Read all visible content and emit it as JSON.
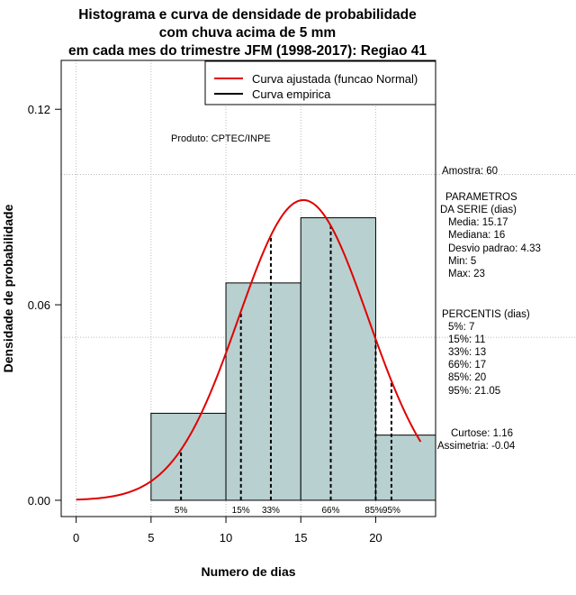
{
  "chart_data": {
    "type": "histogram",
    "title_lines": [
      "Histograma e curva de densidade de probabilidade",
      "com chuva acima de 5 mm",
      "em cada mes do trimestre JFM (1998-2017): Regiao 41"
    ],
    "xlabel": "Numero de dias",
    "ylabel": "Densidade de probabilidade",
    "xlim": [
      -1,
      24
    ],
    "ylim": [
      -0.005,
      0.135
    ],
    "x_ticks": [
      0,
      5,
      10,
      15,
      20
    ],
    "y_ticks": [
      0.0,
      0.06,
      0.12
    ],
    "y_tick_labels": [
      "0.00",
      "0.06",
      "0.12"
    ],
    "bins": [
      {
        "x0": 5,
        "x1": 10,
        "density": 0.0267
      },
      {
        "x0": 10,
        "x1": 15,
        "density": 0.0667
      },
      {
        "x0": 15,
        "x1": 20,
        "density": 0.0867
      },
      {
        "x0": 20,
        "x1": 24,
        "density": 0.02
      }
    ],
    "normal_fit": {
      "mean": 15.17,
      "sd": 4.33,
      "x_from": 0,
      "x_to": 23
    },
    "percentiles": [
      {
        "label": "5%",
        "x": 7
      },
      {
        "label": "15%",
        "x": 11
      },
      {
        "label": "33%",
        "x": 13
      },
      {
        "label": "66%",
        "x": 17
      },
      {
        "label": "85%",
        "x": 20
      },
      {
        "label": "95%",
        "x": 21.05
      }
    ],
    "grid_lines_y": [
      0.05,
      0.1
    ],
    "colors": {
      "bars": "#b8d0d0",
      "curve": "#e00000",
      "empirical": "#000000",
      "grid": "#bbbbbb"
    },
    "legend": [
      {
        "label": "Curva ajustada (funcao Normal)",
        "color": "#e00000"
      },
      {
        "label": "Curva empirica",
        "color": "#000000"
      }
    ],
    "annotation": "Produto: CPTEC/INPE"
  },
  "side_panel": {
    "amostra": "Amostra: 60",
    "param_header": [
      " PARAMETROS",
      "DA SERIE (dias)"
    ],
    "params": [
      "Media: 15.17",
      "Mediana: 16",
      "Desvio padrao: 4.33",
      "Min: 5",
      "Max: 23"
    ],
    "perc_header": "PERCENTIS (dias)",
    "percs": [
      "5%: 7",
      "15%: 11",
      "33%: 13",
      "66%: 17",
      "85%: 20",
      "95%: 21.05"
    ],
    "curtose": "Curtose: 1.16",
    "assimetria": "Assimetria: -0.04"
  }
}
